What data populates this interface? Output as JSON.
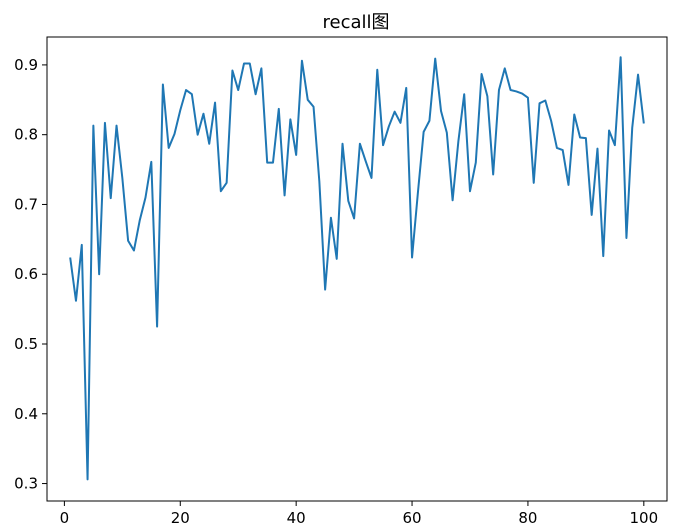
{
  "chart_data": {
    "type": "line",
    "title": "recall图",
    "xlabel": "",
    "ylabel": "",
    "xlim": [
      -3,
      104
    ],
    "ylim": [
      0.275,
      0.94
    ],
    "xticks": [
      0,
      20,
      40,
      60,
      80,
      100
    ],
    "yticks": [
      0.3,
      0.4,
      0.5,
      0.6,
      0.7,
      0.8,
      0.9
    ],
    "xtick_labels": [
      "0",
      "20",
      "40",
      "60",
      "80",
      "100"
    ],
    "ytick_labels": [
      "0.3",
      "0.4",
      "0.5",
      "0.6",
      "0.7",
      "0.8",
      "0.9"
    ],
    "grid": false,
    "color": "#1f77b4",
    "series": [
      {
        "x": [
          1,
          2,
          3,
          4,
          5,
          6,
          7,
          8,
          9,
          10,
          11,
          12,
          13,
          14,
          15,
          16,
          17,
          18,
          19,
          20,
          21,
          22,
          23,
          24,
          25,
          26,
          27,
          28,
          29,
          30,
          31,
          32,
          33,
          34,
          35,
          36,
          37,
          38,
          39,
          40,
          41,
          42,
          43,
          44,
          45,
          46,
          47,
          48,
          49,
          50,
          51,
          52,
          53,
          54,
          55,
          56,
          57,
          58,
          59,
          60,
          61,
          62,
          63,
          64,
          65,
          66,
          67,
          68,
          69,
          70,
          71,
          72,
          73,
          74,
          75,
          76,
          77,
          78,
          79,
          80,
          81,
          82,
          83,
          84,
          85,
          86,
          87,
          88,
          89,
          90,
          91,
          92,
          93,
          94,
          95,
          96,
          97,
          98,
          99,
          100
        ],
        "values": [
          0.624,
          0.562,
          0.642,
          0.306,
          0.813,
          0.6,
          0.817,
          0.709,
          0.813,
          0.738,
          0.648,
          0.634,
          0.677,
          0.71,
          0.761,
          0.525,
          0.872,
          0.781,
          0.801,
          0.835,
          0.864,
          0.858,
          0.8,
          0.83,
          0.787,
          0.846,
          0.719,
          0.731,
          0.892,
          0.864,
          0.902,
          0.902,
          0.858,
          0.895,
          0.76,
          0.76,
          0.837,
          0.713,
          0.822,
          0.771,
          0.906,
          0.85,
          0.84,
          0.733,
          0.578,
          0.681,
          0.622,
          0.787,
          0.705,
          0.68,
          0.787,
          0.762,
          0.738,
          0.893,
          0.785,
          0.812,
          0.833,
          0.817,
          0.867,
          0.624,
          0.716,
          0.804,
          0.82,
          0.909,
          0.834,
          0.803,
          0.706,
          0.791,
          0.858,
          0.719,
          0.76,
          0.887,
          0.855,
          0.743,
          0.864,
          0.895,
          0.864,
          0.862,
          0.859,
          0.853,
          0.731,
          0.845,
          0.849,
          0.82,
          0.781,
          0.778,
          0.728,
          0.829,
          0.796,
          0.795,
          0.685,
          0.78,
          0.626,
          0.806,
          0.785,
          0.911,
          0.652,
          0.81,
          0.886,
          0.816
        ]
      }
    ]
  }
}
